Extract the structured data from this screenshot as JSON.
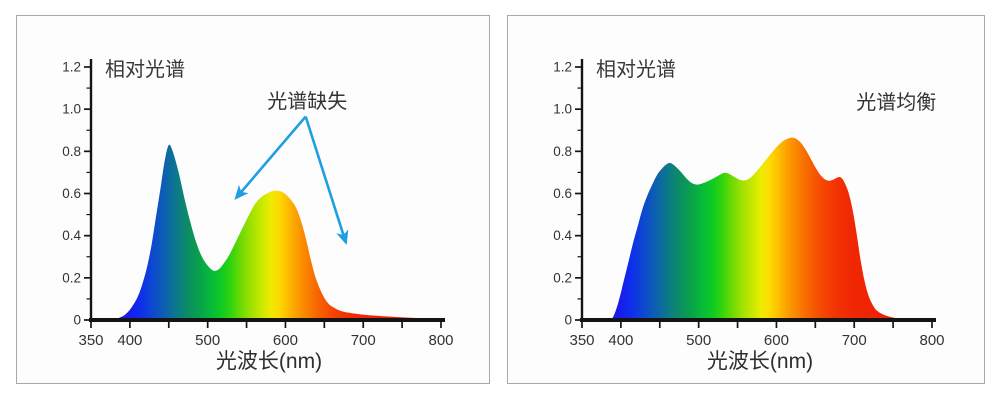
{
  "colors": {
    "axis": "#141414",
    "tick_label": "#333333",
    "annotation": "#1e9fe2",
    "panel_border": "#a9a9a9",
    "panel_background": "#fdfdfd",
    "page_background": "#ffffff"
  },
  "spectrum_gradient": [
    {
      "nm": 380,
      "color": "#2a16e0"
    },
    {
      "nm": 396,
      "color": "#1a1ae8"
    },
    {
      "nm": 412,
      "color": "#0f2cee"
    },
    {
      "nm": 430,
      "color": "#0d49cf"
    },
    {
      "nm": 448,
      "color": "#0c66a8"
    },
    {
      "nm": 462,
      "color": "#0c7b85"
    },
    {
      "nm": 476,
      "color": "#0b8f62"
    },
    {
      "nm": 490,
      "color": "#09a24a"
    },
    {
      "nm": 503,
      "color": "#06b83c"
    },
    {
      "nm": 516,
      "color": "#0cc926"
    },
    {
      "nm": 530,
      "color": "#31d40e"
    },
    {
      "nm": 544,
      "color": "#72da02"
    },
    {
      "nm": 558,
      "color": "#a7e200"
    },
    {
      "nm": 570,
      "color": "#c9e900"
    },
    {
      "nm": 581,
      "color": "#eeea00"
    },
    {
      "nm": 591,
      "color": "#fcdc00"
    },
    {
      "nm": 601,
      "color": "#fdc200"
    },
    {
      "nm": 611,
      "color": "#fca700"
    },
    {
      "nm": 621,
      "color": "#fb9000"
    },
    {
      "nm": 633,
      "color": "#f97600"
    },
    {
      "nm": 646,
      "color": "#f75c01"
    },
    {
      "nm": 660,
      "color": "#f54602"
    },
    {
      "nm": 678,
      "color": "#f23203"
    },
    {
      "nm": 700,
      "color": "#f02603"
    },
    {
      "nm": 745,
      "color": "#ee2102"
    },
    {
      "nm": 800,
      "color": "#ed2001"
    }
  ],
  "chart_data": [
    {
      "type": "area",
      "title": "相对光谱",
      "xlabel": "光波长(nm)",
      "xlim": [
        350,
        800
      ],
      "ylim": [
        0,
        1.2
      ],
      "x_major_tick_step": 50,
      "xtick_labels": [
        "350",
        "400",
        "500",
        "600",
        "700",
        "800"
      ],
      "xtick_label_values": [
        350,
        400,
        500,
        600,
        700,
        800
      ],
      "ytick_labels": [
        "0",
        "0.2",
        "0.4",
        "0.6",
        "0.8",
        "1.0",
        "1.2"
      ],
      "ytick_label_values": [
        0,
        0.2,
        0.4,
        0.6,
        0.8,
        1.0,
        1.2
      ],
      "y_minor_tick_step": 0.1,
      "grid": false,
      "annotation": {
        "text": "光谱缺失",
        "nm": 628,
        "value": 1.005,
        "arrows": [
          {
            "from_nm": 626,
            "from_value": 0.965,
            "to_nm": 538,
            "to_value": 0.585
          },
          {
            "from_nm": 626,
            "from_value": 0.965,
            "to_nm": 677,
            "to_value": 0.375
          }
        ]
      },
      "series": [
        {
          "name": "relative-spectrum-missing",
          "points": [
            [
              380,
              0
            ],
            [
              386,
              0.01
            ],
            [
              392,
              0.02
            ],
            [
              398,
              0.04
            ],
            [
              404,
              0.07
            ],
            [
              410,
              0.11
            ],
            [
              416,
              0.17
            ],
            [
              422,
              0.25
            ],
            [
              428,
              0.36
            ],
            [
              434,
              0.5
            ],
            [
              440,
              0.64
            ],
            [
              445,
              0.76
            ],
            [
              450,
              0.83
            ],
            [
              455,
              0.8
            ],
            [
              462,
              0.71
            ],
            [
              470,
              0.58
            ],
            [
              478,
              0.46
            ],
            [
              486,
              0.36
            ],
            [
              494,
              0.29
            ],
            [
              502,
              0.25
            ],
            [
              508,
              0.233
            ],
            [
              514,
              0.24
            ],
            [
              520,
              0.265
            ],
            [
              528,
              0.31
            ],
            [
              536,
              0.37
            ],
            [
              544,
              0.43
            ],
            [
              552,
              0.49
            ],
            [
              560,
              0.545
            ],
            [
              568,
              0.58
            ],
            [
              576,
              0.6
            ],
            [
              584,
              0.612
            ],
            [
              590,
              0.613
            ],
            [
              596,
              0.607
            ],
            [
              602,
              0.59
            ],
            [
              608,
              0.565
            ],
            [
              614,
              0.53
            ],
            [
              620,
              0.47
            ],
            [
              626,
              0.39
            ],
            [
              632,
              0.295
            ],
            [
              638,
              0.21
            ],
            [
              644,
              0.15
            ],
            [
              650,
              0.105
            ],
            [
              656,
              0.075
            ],
            [
              664,
              0.055
            ],
            [
              672,
              0.042
            ],
            [
              682,
              0.034
            ],
            [
              694,
              0.028
            ],
            [
              710,
              0.022
            ],
            [
              730,
              0.017
            ],
            [
              755,
              0.012
            ],
            [
              775,
              0.008
            ],
            [
              795,
              0.005
            ],
            [
              800,
              0.004
            ]
          ]
        }
      ]
    },
    {
      "type": "area",
      "title": "相对光谱",
      "xlabel": "光波长(nm)",
      "xlim": [
        350,
        800
      ],
      "ylim": [
        0,
        1.2
      ],
      "x_major_tick_step": 50,
      "xtick_labels": [
        "350",
        "400",
        "500",
        "600",
        "700",
        "800"
      ],
      "xtick_label_values": [
        350,
        400,
        500,
        600,
        700,
        800
      ],
      "ytick_labels": [
        "0",
        "0.2",
        "0.4",
        "0.6",
        "0.8",
        "1.0",
        "1.2"
      ],
      "ytick_label_values": [
        0,
        0.2,
        0.4,
        0.6,
        0.8,
        1.0,
        1.2
      ],
      "y_minor_tick_step": 0.1,
      "grid": false,
      "annotation": {
        "text": "光谱均衡",
        "nm": 754,
        "value": 1.0,
        "arrows": []
      },
      "series": [
        {
          "name": "relative-spectrum-balanced",
          "points": [
            [
              388,
              0
            ],
            [
              393,
              0.04
            ],
            [
              398,
              0.1
            ],
            [
              404,
              0.19
            ],
            [
              410,
              0.28
            ],
            [
              416,
              0.37
            ],
            [
              422,
              0.45
            ],
            [
              428,
              0.53
            ],
            [
              434,
              0.59
            ],
            [
              440,
              0.64
            ],
            [
              446,
              0.685
            ],
            [
              452,
              0.715
            ],
            [
              458,
              0.737
            ],
            [
              463,
              0.745
            ],
            [
              468,
              0.735
            ],
            [
              474,
              0.715
            ],
            [
              480,
              0.69
            ],
            [
              486,
              0.665
            ],
            [
              492,
              0.648
            ],
            [
              498,
              0.642
            ],
            [
              504,
              0.647
            ],
            [
              510,
              0.655
            ],
            [
              516,
              0.666
            ],
            [
              522,
              0.678
            ],
            [
              528,
              0.69
            ],
            [
              533,
              0.698
            ],
            [
              538,
              0.695
            ],
            [
              544,
              0.683
            ],
            [
              550,
              0.67
            ],
            [
              556,
              0.662
            ],
            [
              562,
              0.665
            ],
            [
              568,
              0.68
            ],
            [
              574,
              0.703
            ],
            [
              580,
              0.73
            ],
            [
              586,
              0.758
            ],
            [
              592,
              0.785
            ],
            [
              598,
              0.812
            ],
            [
              604,
              0.835
            ],
            [
              610,
              0.852
            ],
            [
              616,
              0.862
            ],
            [
              621,
              0.865
            ],
            [
              626,
              0.858
            ],
            [
              632,
              0.838
            ],
            [
              638,
              0.805
            ],
            [
              644,
              0.765
            ],
            [
              650,
              0.725
            ],
            [
              656,
              0.69
            ],
            [
              662,
              0.668
            ],
            [
              668,
              0.66
            ],
            [
              674,
              0.668
            ],
            [
              680,
              0.678
            ],
            [
              684,
              0.672
            ],
            [
              688,
              0.648
            ],
            [
              693,
              0.6
            ],
            [
              698,
              0.52
            ],
            [
              703,
              0.41
            ],
            [
              708,
              0.29
            ],
            [
              713,
              0.19
            ],
            [
              718,
              0.12
            ],
            [
              724,
              0.07
            ],
            [
              730,
              0.042
            ],
            [
              738,
              0.025
            ],
            [
              748,
              0.013
            ],
            [
              758,
              0.006
            ],
            [
              766,
              0.002
            ],
            [
              770,
              0
            ]
          ]
        }
      ]
    }
  ]
}
